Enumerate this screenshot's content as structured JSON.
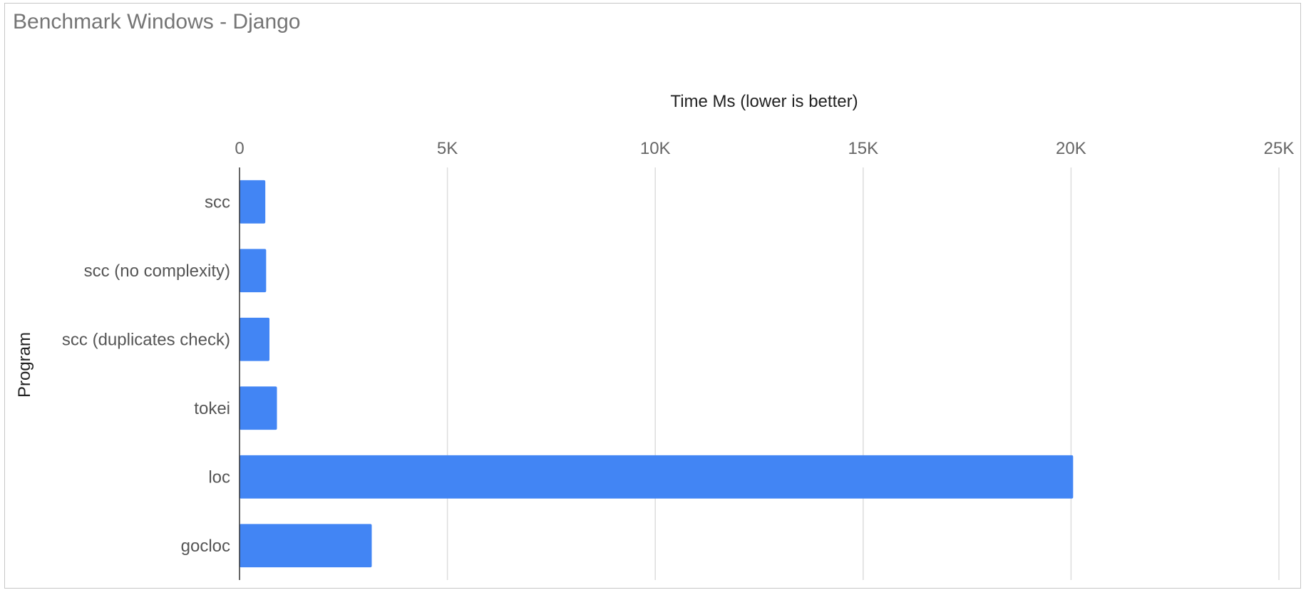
{
  "chart_data": {
    "type": "bar",
    "orientation": "horizontal",
    "title": "Benchmark Windows - Django",
    "xlabel": "Time Ms (lower is better)",
    "ylabel": "Program",
    "xlim": [
      0,
      25000
    ],
    "x_ticks": [
      0,
      5000,
      10000,
      15000,
      20000,
      25000
    ],
    "x_tick_labels": [
      "0",
      "5K",
      "10K",
      "15K",
      "20K",
      "25K"
    ],
    "categories": [
      "scc",
      "scc (no complexity)",
      "scc (duplicates check)",
      "tokei",
      "loc",
      "gocloc"
    ],
    "values": [
      620,
      640,
      720,
      900,
      20050,
      3180
    ],
    "grid": true,
    "legend": "none",
    "bar_color": "#4285f4"
  }
}
